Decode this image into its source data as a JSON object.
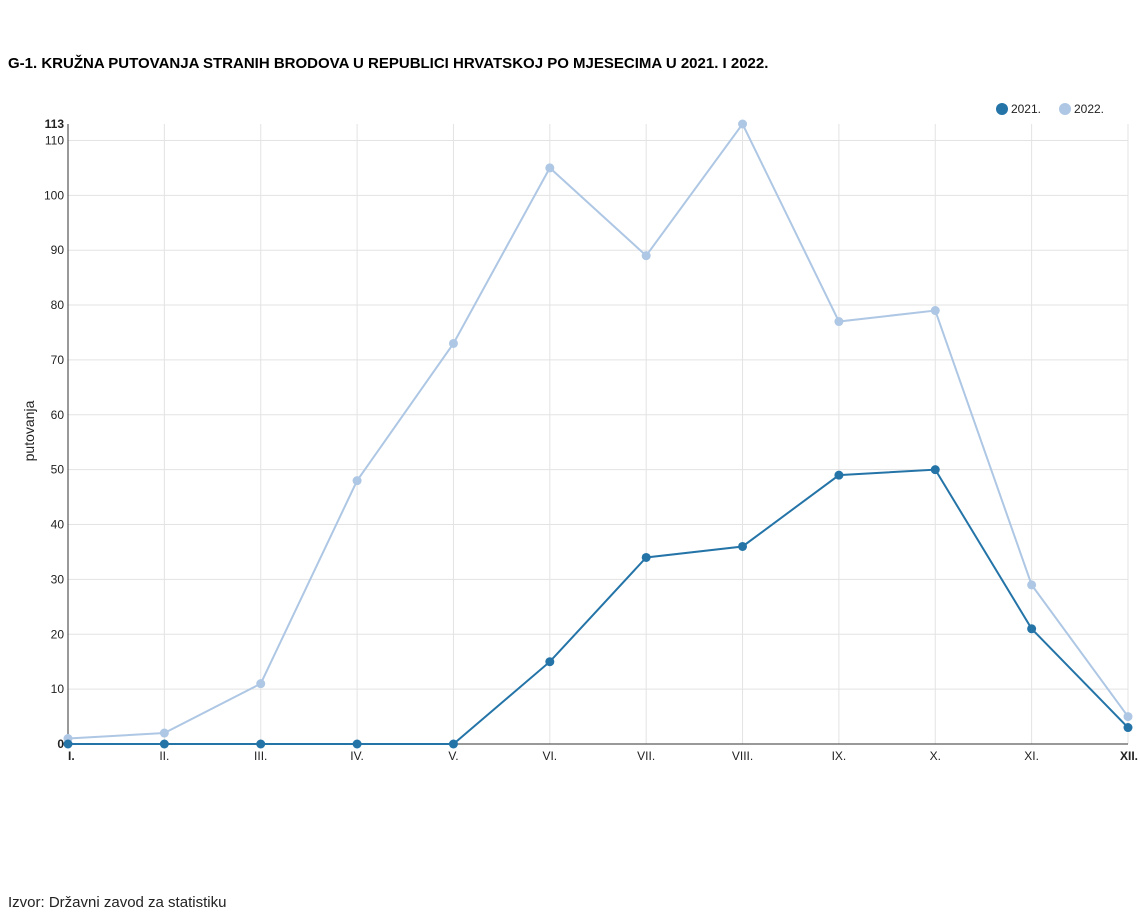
{
  "title": "G-1. KRUŽNA PUTOVANJA STRANIH BRODOVA U REPUBLICI HRVATSKOJ PO MJESECIMA U 2021. I 2022.",
  "source": "Izvor: Državni zavod za statistiku",
  "colors": {
    "series_2021": "#2474a8",
    "series_2022": "#aec7e4",
    "grid": "#e3e3e3",
    "axis": "#333333"
  },
  "chart_data": {
    "type": "line",
    "ylabel": "putovanja",
    "xlabel": "",
    "ylim": [
      0,
      113
    ],
    "y_ticks": [
      0,
      10,
      20,
      30,
      40,
      50,
      60,
      70,
      80,
      90,
      100,
      110,
      113
    ],
    "categories": [
      "I.",
      "II.",
      "III.",
      "IV.",
      "V.",
      "VI.",
      "VII.",
      "VIII.",
      "IX.",
      "X.",
      "XI.",
      "XII."
    ],
    "legend_position": "top-right",
    "grid": true,
    "series": [
      {
        "name": "2021.",
        "values": [
          0,
          0,
          0,
          0,
          0,
          15,
          34,
          36,
          49,
          50,
          21,
          3
        ]
      },
      {
        "name": "2022.",
        "values": [
          1,
          2,
          11,
          48,
          73,
          105,
          89,
          113,
          77,
          79,
          29,
          5
        ]
      }
    ]
  }
}
